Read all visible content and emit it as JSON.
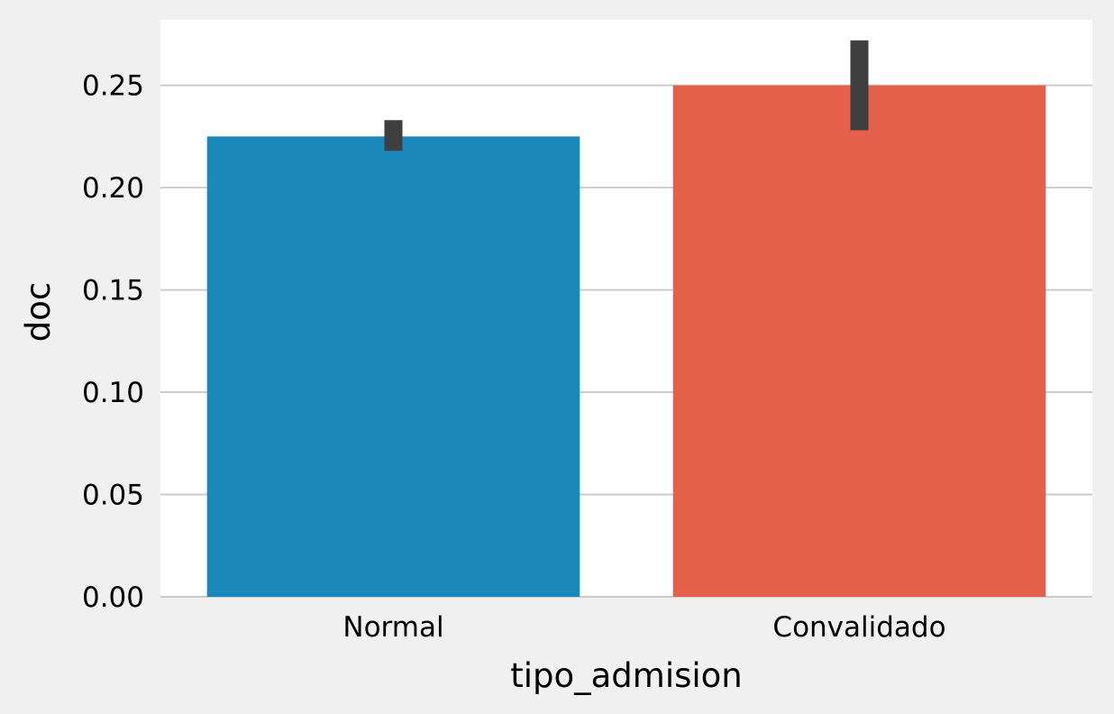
{
  "chart_data": {
    "type": "bar",
    "title": "",
    "xlabel": "tipo_admision",
    "ylabel": "doc",
    "categories": [
      "Normal",
      "Convalidado"
    ],
    "values": [
      0.225,
      0.25
    ],
    "error_bars": [
      {
        "low": 0.218,
        "high": 0.233
      },
      {
        "low": 0.228,
        "high": 0.272
      }
    ],
    "ylim": [
      0,
      0.282
    ],
    "yticks": [
      0.0,
      0.05,
      0.1,
      0.15,
      0.2,
      0.25
    ],
    "ytick_labels": [
      "0.00",
      "0.05",
      "0.10",
      "0.15",
      "0.20",
      "0.25"
    ],
    "grid": true,
    "legend": "none",
    "colors": {
      "bars": [
        "#1b87ba",
        "#e4604a"
      ],
      "error_bar": "#3f3f3f",
      "plot_background": "#ffffff",
      "figure_background": "#f0f0f0",
      "grid": "#cbcbcb"
    }
  }
}
